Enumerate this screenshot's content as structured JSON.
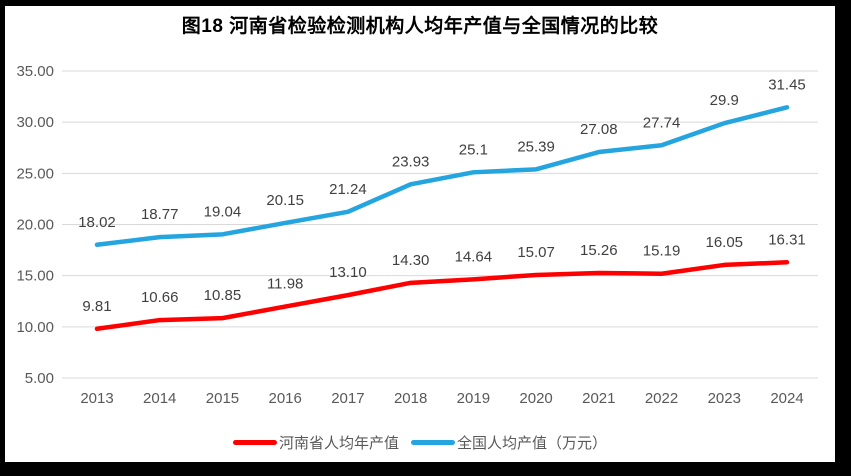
{
  "frame": {
    "border_color": "#000000",
    "background": "#ffffff"
  },
  "chart_data": {
    "type": "line",
    "title": "图18  河南省检验检测机构人均年产值与全国情况的比较",
    "categories": [
      "2013",
      "2014",
      "2015",
      "2016",
      "2017",
      "2018",
      "2019",
      "2020",
      "2021",
      "2022",
      "2023",
      "2024"
    ],
    "series": [
      {
        "name": "河南省人均年产值",
        "color": "#FF0000",
        "values": [
          9.81,
          10.66,
          10.85,
          11.98,
          13.1,
          14.3,
          14.64,
          15.07,
          15.26,
          15.19,
          16.05,
          16.31
        ],
        "labels": [
          "9.81",
          "10.66",
          "10.85",
          "11.98",
          "13.10",
          "14.30",
          "14.64",
          "15.07",
          "15.26",
          "15.19",
          "16.05",
          "16.31"
        ]
      },
      {
        "name": "全国人均产值（万元）",
        "color": "#25A5DF",
        "values": [
          18.02,
          18.77,
          19.04,
          20.15,
          21.24,
          23.93,
          25.1,
          25.39,
          27.08,
          27.74,
          29.9,
          31.45
        ],
        "labels": [
          "18.02",
          "18.77",
          "19.04",
          "20.15",
          "21.24",
          "23.93",
          "25.1",
          "25.39",
          "27.08",
          "27.74",
          "29.9",
          "31.45"
        ]
      }
    ],
    "y_ticks": [
      "35.00",
      "30.00",
      "25.00",
      "20.00",
      "15.00",
      "10.00",
      "5.00"
    ],
    "ylim": [
      5,
      35
    ],
    "grid": true,
    "legend_position": "bottom",
    "colors": {
      "gridline": "#D9D9D9",
      "axis_text": "#595959",
      "data_label": "#404040",
      "title_text": "#000000"
    }
  }
}
